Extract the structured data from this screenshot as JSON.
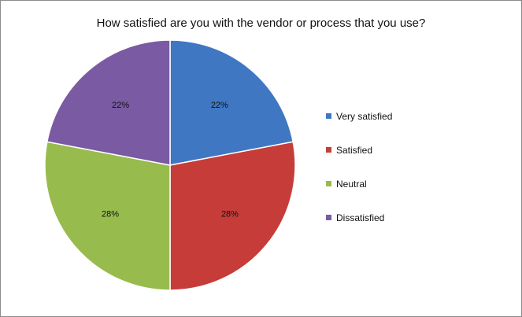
{
  "chart_data": {
    "type": "pie",
    "title": "How satisfied are you with the vendor or process that you use?",
    "categories": [
      "Very satisfied",
      "Satisfied",
      "Neutral",
      "Dissatisfied"
    ],
    "values": [
      22,
      28,
      28,
      22
    ],
    "value_labels": [
      "22%",
      "28%",
      "28%",
      "22%"
    ],
    "colors": [
      "#3f77c2",
      "#c53c39",
      "#98bb4d",
      "#7a5aa2"
    ],
    "start_angle": "12 o'clock",
    "direction": "clockwise",
    "legend_position": "right",
    "grid": false
  }
}
